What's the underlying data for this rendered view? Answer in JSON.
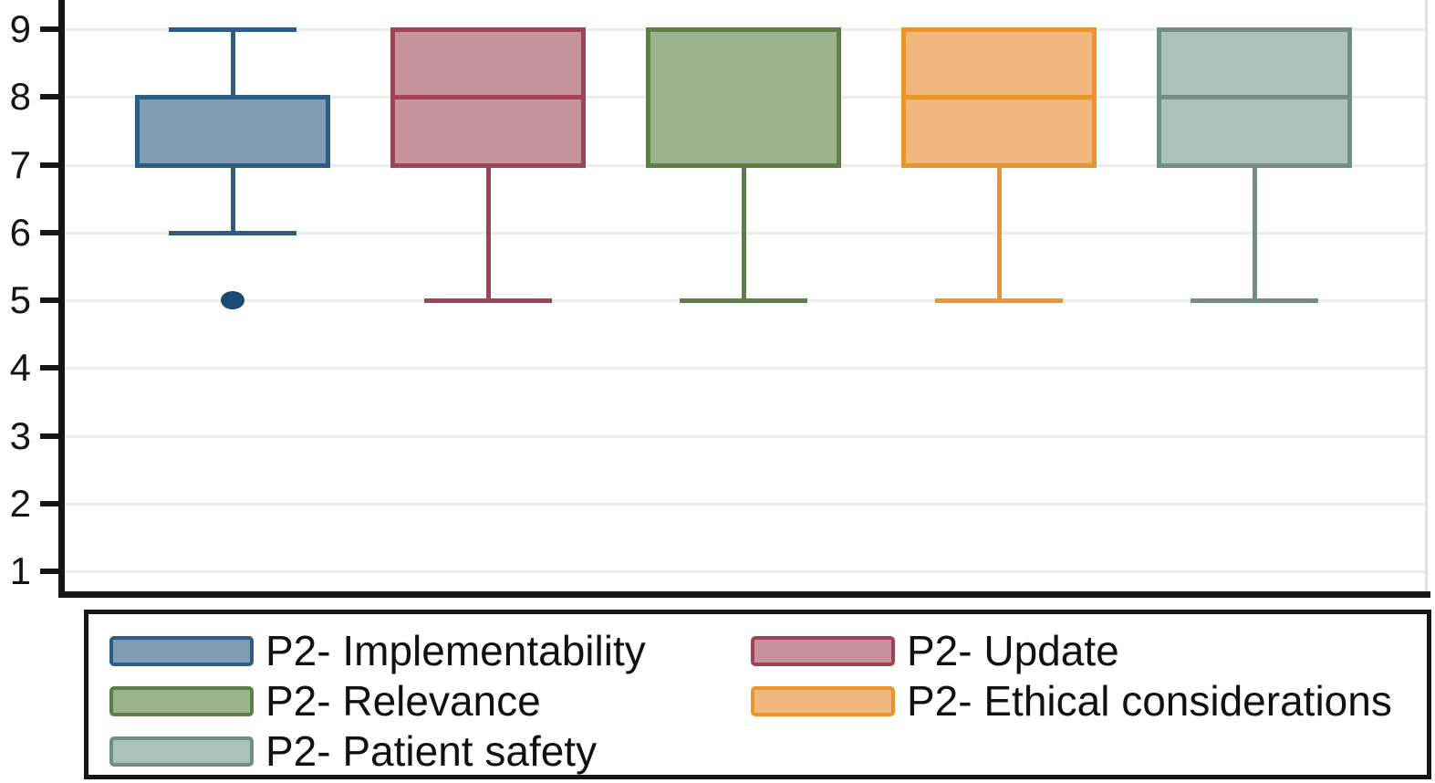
{
  "figure": {
    "background": "#ffffff",
    "axis_color": "#161616",
    "grid_color": "#ececec",
    "plot_right_border_color": "#e2e2e2",
    "text_color": "#141414",
    "outlier_color": "#1b4a73",
    "legend_border_color": "#161616"
  },
  "chart_data": {
    "type": "boxplot",
    "orientation": "vertical",
    "title": "",
    "xlabel": "",
    "ylabel": "",
    "y_ticks": [
      1,
      2,
      3,
      4,
      5,
      6,
      7,
      8,
      9
    ],
    "ylim": [
      0.6,
      9.4
    ],
    "grid": "horizontal",
    "legend_position": "bottom",
    "series": [
      {
        "label": "P2- Implementability",
        "q1": 7,
        "median": null,
        "q3": 8,
        "whisker_low": 6,
        "whisker_high": 9,
        "outliers": [
          5
        ],
        "fill": "#7f9cb5",
        "stroke": "#2d5c86"
      },
      {
        "label": "P2- Update",
        "q1": 7,
        "median": 8,
        "q3": 9,
        "whisker_low": 5,
        "whisker_high": 9,
        "outliers": [],
        "fill": "#c6939c",
        "stroke": "#9e4456"
      },
      {
        "label": "P2- Relevance",
        "q1": 7,
        "median": null,
        "q3": 9,
        "whisker_low": 5,
        "whisker_high": 9,
        "outliers": [],
        "fill": "#9cb28d",
        "stroke": "#5c7f47"
      },
      {
        "label": "P2- Ethical considerations",
        "q1": 7,
        "median": 8,
        "q3": 9,
        "whisker_low": 5,
        "whisker_high": 9,
        "outliers": [],
        "fill": "#efb77c",
        "stroke": "#e8952f"
      },
      {
        "label": "P2- Patient safety",
        "q1": 7,
        "median": 8,
        "q3": 9,
        "whisker_low": 5,
        "whisker_high": 9,
        "outliers": [],
        "fill": "#adc1bb",
        "stroke": "#6f8e86"
      }
    ],
    "legend_columns": [
      [
        "P2- Implementability",
        "P2- Relevance",
        "P2- Patient safety"
      ],
      [
        "P2- Update",
        "P2- Ethical considerations"
      ]
    ]
  }
}
